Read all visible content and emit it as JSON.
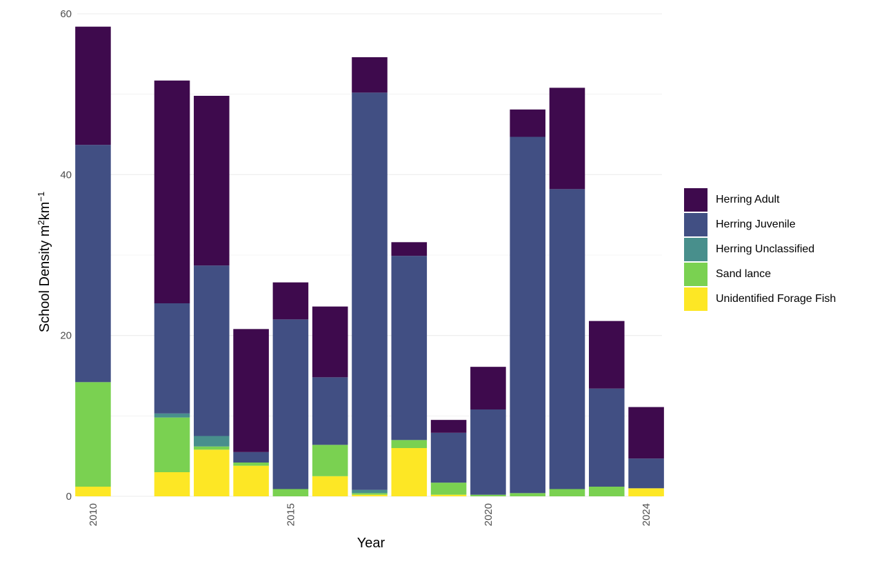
{
  "chart_data": {
    "type": "bar",
    "stacked": true,
    "xlabel": "Year",
    "ylabel": {
      "prefix": "School Density m",
      "sup1": "2",
      "mid": "km",
      "sup2": "−1"
    },
    "ylim": [
      0,
      60
    ],
    "y_ticks": [
      0,
      20,
      40,
      60
    ],
    "x_ticks": [
      2010,
      2015,
      2020,
      2024
    ],
    "xlim": [
      2009.6,
      2024.4
    ],
    "gridlines": true,
    "legend_position": "right",
    "categories": [
      2010,
      2012,
      2013,
      2014,
      2015,
      2016,
      2017,
      2018,
      2019,
      2020,
      2021,
      2022,
      2023,
      2024
    ],
    "series": [
      {
        "name": "Unidentified Forage Fish",
        "color": "#fde725",
        "values": [
          1.2,
          3.0,
          5.8,
          3.8,
          0,
          2.5,
          0.2,
          6.0,
          0.2,
          0,
          0,
          0,
          0,
          1.0
        ]
      },
      {
        "name": "Sand lance",
        "color": "#7ad151",
        "values": [
          13.0,
          6.8,
          0.4,
          0.4,
          0.9,
          3.9,
          0.2,
          1.0,
          1.5,
          0.2,
          0.4,
          0.9,
          1.2,
          0
        ]
      },
      {
        "name": "Herring Unclassified",
        "color": "#488f8c",
        "values": [
          0,
          0.5,
          1.3,
          0,
          0,
          0,
          0.4,
          0,
          0,
          0,
          0,
          0,
          0,
          0
        ]
      },
      {
        "name": "Herring Juvenile",
        "color": "#414f83",
        "values": [
          29.5,
          13.7,
          21.2,
          1.3,
          21.1,
          8.4,
          49.4,
          22.9,
          6.2,
          10.6,
          44.3,
          37.3,
          12.2,
          3.7
        ]
      },
      {
        "name": "Herring Adult",
        "color": "#3e0a4d",
        "values": [
          14.7,
          27.7,
          21.1,
          15.3,
          4.6,
          8.8,
          4.4,
          1.7,
          1.6,
          5.3,
          3.4,
          12.6,
          8.4,
          6.4
        ]
      }
    ],
    "legend_order": [
      "Herring Adult",
      "Herring Juvenile",
      "Herring Unclassified",
      "Sand lance",
      "Unidentified Forage Fish"
    ]
  },
  "colors": {
    "grid": "#ebebeb",
    "background": "#ffffff",
    "tick_text": "#4d4d4d"
  }
}
